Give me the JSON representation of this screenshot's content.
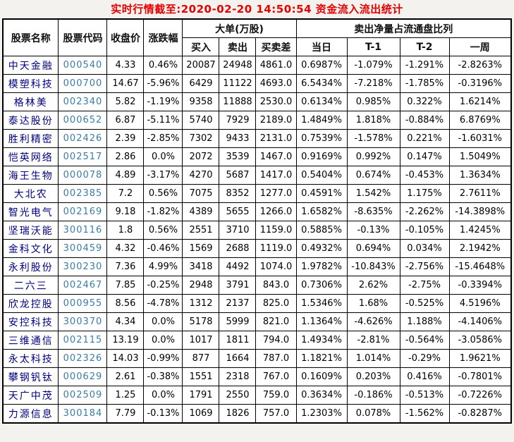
{
  "title": "实时行情截至:2020-02-20 14:50:54 资金流入流出统计",
  "colors": {
    "title_red": "#e60000",
    "stock_name_navy": "#000080",
    "stock_code_blue": "#3a7ca6",
    "border_black": "#000000",
    "cell_background": "#ffffff"
  },
  "table": {
    "headers": {
      "stock_name": "股票名称",
      "stock_code": "股票代码",
      "close_price": "收盘价",
      "change_pct": "涨跌幅",
      "big_order_group": "大单(万股)",
      "big_order_cols": [
        "买入",
        "卖出",
        "买卖差"
      ],
      "net_sell_group": "卖出净量占流通盘比列",
      "net_sell_cols": [
        "当日",
        "T-1",
        "T-2",
        "一周"
      ]
    },
    "rows": [
      [
        "中天金融",
        "000540",
        "4.33",
        "0.46%",
        "20087",
        "24948",
        "4861.0",
        "0.6987%",
        "-1.079%",
        "-1.291%",
        "-2.8263%"
      ],
      [
        "模塑科技",
        "000700",
        "14.67",
        "-5.96%",
        "6429",
        "11122",
        "4693.0",
        "6.5434%",
        "-7.218%",
        "-1.785%",
        "-0.3196%"
      ],
      [
        "格林美",
        "002340",
        "5.82",
        "-1.19%",
        "9358",
        "11888",
        "2530.0",
        "0.6134%",
        "0.985%",
        "0.322%",
        "1.6214%"
      ],
      [
        "泰达股份",
        "000652",
        "6.87",
        "-5.11%",
        "5740",
        "7929",
        "2189.0",
        "1.4849%",
        "1.818%",
        "-0.884%",
        "6.8769%"
      ],
      [
        "胜利精密",
        "002426",
        "2.39",
        "-2.85%",
        "7302",
        "9433",
        "2131.0",
        "0.7539%",
        "-1.578%",
        "0.221%",
        "-1.6031%"
      ],
      [
        "恺英网络",
        "002517",
        "2.86",
        "0.0%",
        "2072",
        "3539",
        "1467.0",
        "0.9169%",
        "0.992%",
        "0.147%",
        "1.5049%"
      ],
      [
        "海王生物",
        "000078",
        "4.89",
        "-3.17%",
        "4270",
        "5687",
        "1417.0",
        "0.5404%",
        "0.674%",
        "-0.453%",
        "1.3634%"
      ],
      [
        "大北农",
        "002385",
        "7.2",
        "0.56%",
        "7075",
        "8352",
        "1277.0",
        "0.4591%",
        "1.542%",
        "1.175%",
        "2.7611%"
      ],
      [
        "智光电气",
        "002169",
        "9.18",
        "-1.82%",
        "4389",
        "5655",
        "1266.0",
        "1.6582%",
        "-8.635%",
        "-2.262%",
        "-14.3898%"
      ],
      [
        "坚瑞沃能",
        "300116",
        "1.8",
        "0.56%",
        "2551",
        "3710",
        "1159.0",
        "0.5885%",
        "-0.13%",
        "-0.105%",
        "1.4245%"
      ],
      [
        "金科文化",
        "300459",
        "4.32",
        "-0.46%",
        "1569",
        "2688",
        "1119.0",
        "0.4932%",
        "0.694%",
        "0.034%",
        "2.1942%"
      ],
      [
        "永利股份",
        "300230",
        "7.36",
        "4.99%",
        "3418",
        "4492",
        "1074.0",
        "1.9782%",
        "-10.843%",
        "-2.756%",
        "-15.4648%"
      ],
      [
        "二六三",
        "002467",
        "7.85",
        "-0.25%",
        "2948",
        "3791",
        "843.0",
        "0.7306%",
        "2.62%",
        "-2.75%",
        "-0.3394%"
      ],
      [
        "欣龙控股",
        "000955",
        "8.56",
        "-4.78%",
        "1312",
        "2137",
        "825.0",
        "1.5346%",
        "1.68%",
        "-0.525%",
        "4.5196%"
      ],
      [
        "安控科技",
        "300370",
        "4.34",
        "0.0%",
        "5178",
        "5999",
        "821.0",
        "1.1364%",
        "-4.626%",
        "1.188%",
        "-4.1406%"
      ],
      [
        "三维通信",
        "002115",
        "13.19",
        "0.0%",
        "1017",
        "1811",
        "794.0",
        "1.4934%",
        "-2.81%",
        "-0.564%",
        "-3.0586%"
      ],
      [
        "永太科技",
        "002326",
        "14.03",
        "-0.99%",
        "877",
        "1664",
        "787.0",
        "1.1821%",
        "1.014%",
        "-0.29%",
        "1.9621%"
      ],
      [
        "攀钢钒钛",
        "000629",
        "2.61",
        "-0.38%",
        "1551",
        "2318",
        "767.0",
        "0.1609%",
        "0.203%",
        "0.416%",
        "-0.7801%"
      ],
      [
        "天广中茂",
        "002509",
        "1.25",
        "0.0%",
        "1791",
        "2550",
        "759.0",
        "0.3634%",
        "-0.186%",
        "-0.513%",
        "-0.7226%"
      ],
      [
        "力源信息",
        "300184",
        "7.79",
        "-0.13%",
        "1069",
        "1826",
        "757.0",
        "1.2303%",
        "0.078%",
        "-1.562%",
        "-0.8287%"
      ]
    ]
  }
}
